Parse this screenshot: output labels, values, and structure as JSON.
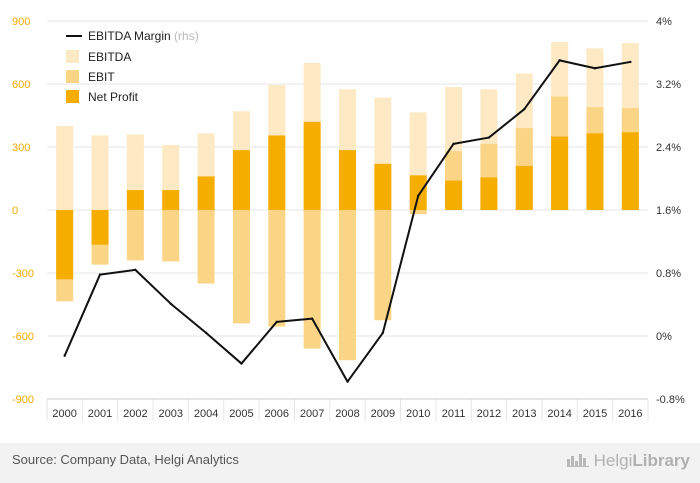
{
  "chart_data": {
    "type": "bar",
    "categories": [
      "2000",
      "2001",
      "2002",
      "2003",
      "2004",
      "2005",
      "2006",
      "2007",
      "2008",
      "2009",
      "2010",
      "2011",
      "2012",
      "2013",
      "2014",
      "2015",
      "2016"
    ],
    "series": [
      {
        "name": "EBITDA",
        "type": "bar",
        "axis": "left",
        "values": [
          400,
          355,
          360,
          310,
          365,
          470,
          595,
          700,
          575,
          535,
          465,
          585,
          575,
          650,
          800,
          770,
          795
        ]
      },
      {
        "name": "EBIT",
        "type": "bar",
        "axis": "left",
        "values": [
          -435,
          -260,
          -240,
          -245,
          -350,
          -540,
          -555,
          -660,
          -715,
          -525,
          -20,
          280,
          315,
          390,
          540,
          490,
          485
        ]
      },
      {
        "name": "Net Profit",
        "type": "bar",
        "axis": "left",
        "values": [
          -330,
          -165,
          95,
          95,
          160,
          285,
          355,
          420,
          285,
          220,
          165,
          140,
          155,
          210,
          350,
          365,
          370
        ]
      },
      {
        "name": "EBITDA Margin",
        "name_suffix": "(rhs)",
        "type": "line",
        "axis": "right",
        "values": [
          -0.25,
          0.78,
          0.84,
          0.41,
          0.04,
          -0.35,
          0.18,
          0.22,
          -0.58,
          0.04,
          1.78,
          2.44,
          2.52,
          2.88,
          3.5,
          3.4,
          3.48
        ]
      }
    ],
    "yaxis_left": {
      "ylim": [
        -900,
        900
      ],
      "ticks": [
        "900",
        "600",
        "300",
        "0",
        "-300",
        "-600",
        "-900"
      ],
      "tick_values": [
        900,
        600,
        300,
        0,
        -300,
        -600,
        -900
      ]
    },
    "yaxis_right": {
      "ylim": [
        -0.8,
        4.0
      ],
      "ticks": [
        "4%",
        "3.2%",
        "2.4%",
        "1.6%",
        "0.8%",
        "0%",
        "-0.8%"
      ],
      "tick_values": [
        4.0,
        3.2,
        2.4,
        1.6,
        0.8,
        0,
        -0.8
      ]
    },
    "grid": true,
    "legend_position": "top-left",
    "colors": {
      "EBITDA": "#fde9c4",
      "EBIT": "#fbd586",
      "Net Profit": "#f5ad00",
      "EBITDA Margin": "#111111",
      "left_ticks": "#f2a900",
      "grid": "#e6e6e6"
    }
  },
  "footer": {
    "source": "Source: Company Data, Helgi Analytics",
    "brand_part1": "Helgi",
    "brand_part2": "Library",
    "brand_icon": "city-skyline-icon"
  }
}
